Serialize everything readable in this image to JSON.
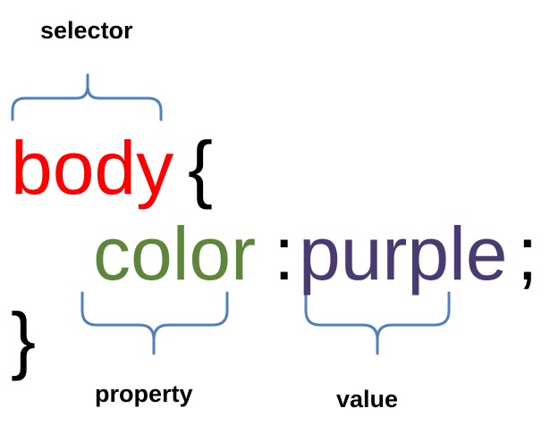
{
  "labels": {
    "selector": "selector",
    "property": "property",
    "value": "value"
  },
  "code": {
    "selector": "body",
    "open_brace": "{",
    "property": "color",
    "colon": ":",
    "value": "purple",
    "semicolon": ";",
    "close_brace": "}"
  },
  "colors": {
    "selector": "#ff0000",
    "property": "#5f843b",
    "value": "#4a3a72",
    "punctuation": "#000000",
    "bracket": "#4f81bd"
  }
}
